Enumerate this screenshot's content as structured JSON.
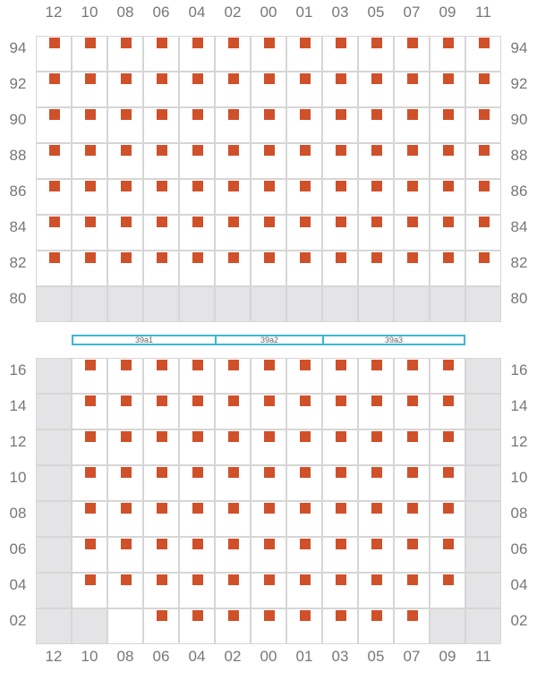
{
  "grid": {
    "columns": [
      "12",
      "10",
      "08",
      "06",
      "04",
      "02",
      "00",
      "01",
      "03",
      "05",
      "07",
      "09",
      "11"
    ],
    "upper_rows": [
      "94",
      "92",
      "90",
      "88",
      "86",
      "84",
      "82",
      "80"
    ],
    "lower_rows": [
      "16",
      "14",
      "12",
      "10",
      "08",
      "06",
      "04",
      "02"
    ],
    "upper_block": [
      "1111111111111",
      "1111111111111",
      "1111111111111",
      "1111111111111",
      "1111111111111",
      "1111111111111",
      "1111111111111",
      "0000000000000"
    ],
    "lower_block": [
      "0111111111110",
      "0111111111110",
      "0111111111110",
      "0111111111110",
      "0111111111110",
      "0111111111110",
      "0111111111110",
      "0021111111100"
    ]
  },
  "zones": [
    {
      "label": "39a1",
      "start_col": 1,
      "span": 4
    },
    {
      "label": "39a2",
      "start_col": 5,
      "span": 3
    },
    {
      "label": "39a3",
      "start_col": 8,
      "span": 4
    }
  ],
  "colors": {
    "marker": "#d0502a",
    "empty_cell": "#e4e4e6",
    "grid_line": "#d6d6d6",
    "zone_border": "#3cb7d3",
    "label_text": "#777777"
  }
}
